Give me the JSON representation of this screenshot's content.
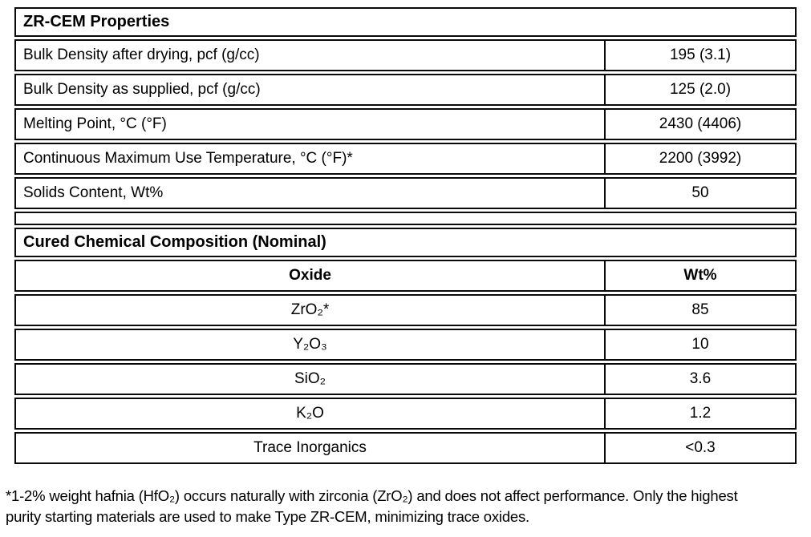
{
  "properties_table": {
    "title": "ZR-CEM Properties",
    "rows": [
      {
        "label": "Bulk Density after drying, pcf (g/cc)",
        "value": "195 (3.1)"
      },
      {
        "label": "Bulk Density as supplied, pcf (g/cc)",
        "value": "125 (2.0)"
      },
      {
        "label": "Melting Point, °C (°F)",
        "value": "2430 (4406)"
      },
      {
        "label": "Continuous Maximum Use Temperature, °C (°F)*",
        "value": "2200 (3992)"
      },
      {
        "label": "Solids Content, Wt%",
        "value": "50"
      }
    ]
  },
  "composition_table": {
    "title": "Cured Chemical Composition (Nominal)",
    "headers": {
      "oxide": "Oxide",
      "wt": "Wt%"
    },
    "rows": [
      {
        "oxide": "ZrO₂*",
        "wt": "85"
      },
      {
        "oxide": "Y₂O₃",
        "wt": "10"
      },
      {
        "oxide": "SiO₂",
        "wt": "3.6"
      },
      {
        "oxide": "K₂O",
        "wt": "1.2"
      },
      {
        "oxide": "Trace Inorganics",
        "wt": "<0.3"
      }
    ]
  },
  "footnote": {
    "text": "*1-2% weight hafnia (HfO₂) occurs naturally with zirconia (ZrO₂) and does not affect performance. Only the highest purity starting materials are used to make Type ZR-CEM, minimizing trace oxides."
  },
  "colors": {
    "border": "#0a0a0a",
    "text": "#000000",
    "background": "#ffffff"
  }
}
